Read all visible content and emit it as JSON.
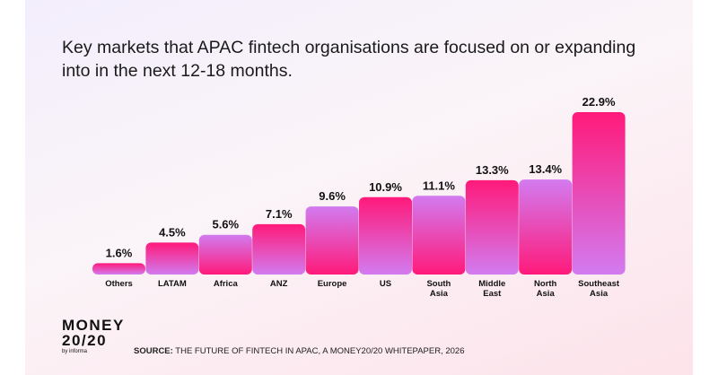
{
  "title": "Key markets that APAC fintech organisations are focused on or expanding into in the next 12-18 months.",
  "source": {
    "prefix": "SOURCE:",
    "text": "THE FUTURE OF FINTECH IN APAC, A MONEY20/20 WHITEPAPER, 2026"
  },
  "logo": {
    "line1": "MONEY",
    "line2": "20/20",
    "byline": "by informa"
  },
  "colors": {
    "bar_pink": "#ff1a7a",
    "bar_purple": "#d27bf0"
  },
  "chart_data": {
    "type": "bar",
    "categories": [
      "Others",
      "LATAM",
      "Africa",
      "ANZ",
      "Europe",
      "US",
      "South Asia",
      "Middle East",
      "North Asia",
      "Southeast Asia"
    ],
    "values": [
      1.6,
      4.5,
      5.6,
      7.1,
      9.6,
      10.9,
      11.1,
      13.3,
      13.4,
      22.9
    ],
    "value_labels": [
      "1.6%",
      "4.5%",
      "5.6%",
      "7.1%",
      "9.6%",
      "10.9%",
      "11.1%",
      "13.3%",
      "13.4%",
      "22.9%"
    ],
    "gradient_direction": [
      "pink-to-purple",
      "pink-to-purple",
      "purple-to-pink",
      "pink-to-purple",
      "purple-to-pink",
      "pink-to-purple",
      "purple-to-pink",
      "pink-to-purple",
      "purple-to-pink",
      "pink-to-purple"
    ],
    "ylim": [
      0,
      22.9
    ],
    "grid": false,
    "xlabel": "",
    "ylabel": ""
  }
}
